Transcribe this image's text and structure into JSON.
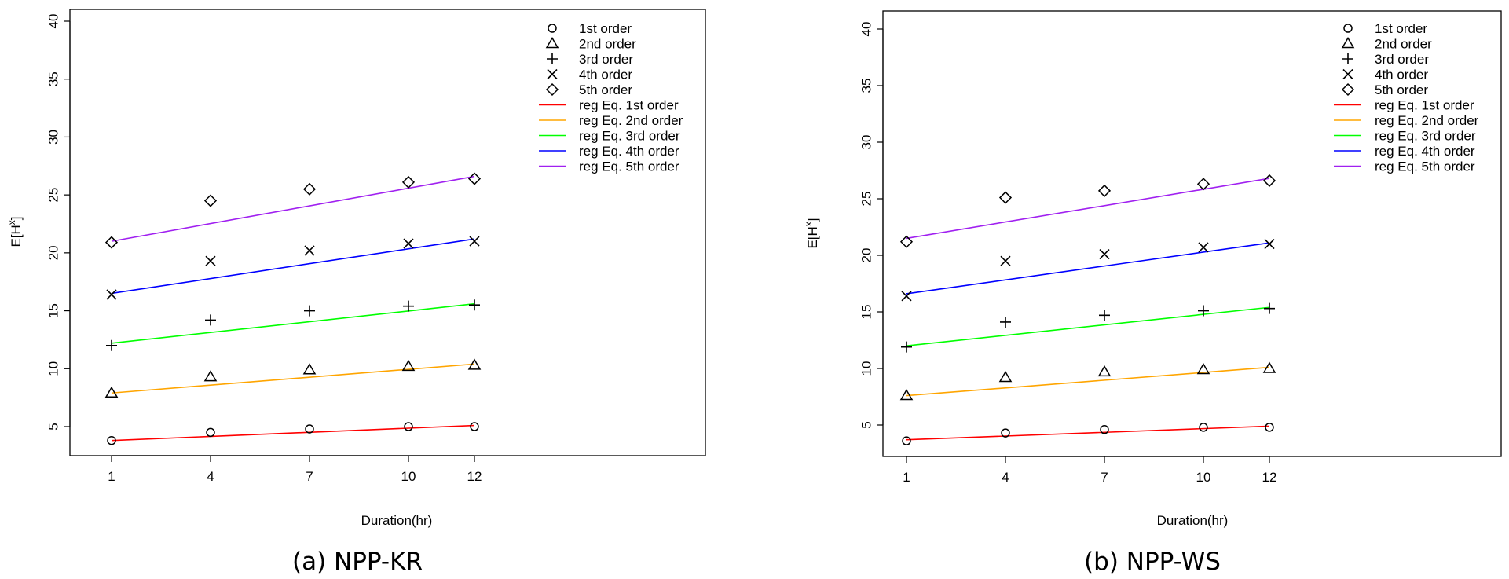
{
  "chart_data": [
    {
      "type": "scatter",
      "caption": "(a) NPP-KR",
      "xlabel": "Duration(hr)",
      "ylabel": "E[H^x]",
      "x": [
        1,
        4,
        7,
        10,
        12
      ],
      "x_ticks": [
        1,
        4,
        7,
        10,
        12
      ],
      "xlim": [
        1,
        12
      ],
      "y_ticks": [
        5,
        10,
        15,
        20,
        25,
        30,
        35,
        40
      ],
      "ylim": [
        2.5,
        40.5
      ],
      "series": [
        {
          "name": "1st order",
          "marker": "circle",
          "values": [
            3.8,
            4.5,
            4.8,
            5.0,
            5.0
          ]
        },
        {
          "name": "2nd order",
          "marker": "triangle",
          "values": [
            7.9,
            9.3,
            9.9,
            10.2,
            10.3
          ]
        },
        {
          "name": "3rd order",
          "marker": "plus",
          "values": [
            12.0,
            14.2,
            15.0,
            15.4,
            15.5
          ]
        },
        {
          "name": "4th order",
          "marker": "cross",
          "values": [
            16.4,
            19.3,
            20.2,
            20.8,
            21.0
          ]
        },
        {
          "name": "5th order",
          "marker": "diamond",
          "values": [
            20.9,
            24.5,
            25.5,
            26.1,
            26.4
          ]
        }
      ],
      "regression": [
        {
          "name": "reg Eq. 1st order",
          "color": "#ff0000",
          "y_start": 3.8,
          "y_end": 5.1
        },
        {
          "name": "reg Eq. 2nd order",
          "color": "#ffa500",
          "y_start": 7.9,
          "y_end": 10.4
        },
        {
          "name": "reg Eq. 3rd order",
          "color": "#00ff00",
          "y_start": 12.2,
          "y_end": 15.6
        },
        {
          "name": "reg Eq. 4th order",
          "color": "#0000ff",
          "y_start": 16.5,
          "y_end": 21.2
        },
        {
          "name": "reg Eq. 5th order",
          "color": "#a020f0",
          "y_start": 21.0,
          "y_end": 26.6
        }
      ],
      "legend_position": "top-right"
    },
    {
      "type": "scatter",
      "caption": "(b) NPP-WS",
      "xlabel": "Duration(hr)",
      "ylabel": "E[H^x]",
      "x": [
        1,
        4,
        7,
        10,
        12
      ],
      "x_ticks": [
        1,
        4,
        7,
        10,
        12
      ],
      "xlim": [
        1,
        12
      ],
      "y_ticks": [
        5,
        10,
        15,
        20,
        25,
        30,
        35,
        40
      ],
      "ylim": [
        2.5,
        40.5
      ],
      "series": [
        {
          "name": "1st order",
          "marker": "circle",
          "values": [
            3.6,
            4.3,
            4.6,
            4.8,
            4.8
          ]
        },
        {
          "name": "2nd order",
          "marker": "triangle",
          "values": [
            7.6,
            9.2,
            9.7,
            9.9,
            10.0
          ]
        },
        {
          "name": "3rd order",
          "marker": "plus",
          "values": [
            11.9,
            14.1,
            14.7,
            15.1,
            15.3
          ]
        },
        {
          "name": "4th order",
          "marker": "cross",
          "values": [
            16.4,
            19.5,
            20.1,
            20.7,
            21.0
          ]
        },
        {
          "name": "5th order",
          "marker": "diamond",
          "values": [
            21.2,
            25.1,
            25.7,
            26.3,
            26.6
          ]
        }
      ],
      "regression": [
        {
          "name": "reg Eq. 1st order",
          "color": "#ff0000",
          "y_start": 3.7,
          "y_end": 4.9
        },
        {
          "name": "reg Eq. 2nd order",
          "color": "#ffa500",
          "y_start": 7.6,
          "y_end": 10.1
        },
        {
          "name": "reg Eq. 3rd order",
          "color": "#00ff00",
          "y_start": 12.0,
          "y_end": 15.4
        },
        {
          "name": "reg Eq. 4th order",
          "color": "#0000ff",
          "y_start": 16.6,
          "y_end": 21.1
        },
        {
          "name": "reg Eq. 5th order",
          "color": "#a020f0",
          "y_start": 21.5,
          "y_end": 26.8
        }
      ],
      "legend_position": "top-right"
    }
  ]
}
